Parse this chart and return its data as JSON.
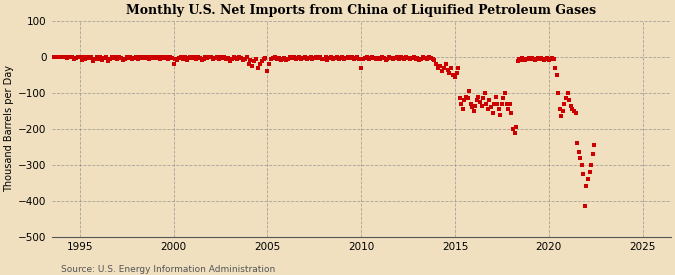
{
  "title": "Monthly U.S. Net Imports from China of Liquified Petroleum Gases",
  "ylabel": "Thousand Barrels per Day",
  "source": "Source: U.S. Energy Information Administration",
  "background_color": "#f0e0c0",
  "plot_bg_color": "#f0e0c0",
  "marker_color": "#cc0000",
  "xlim": [
    1993.5,
    2026.5
  ],
  "ylim": [
    -500,
    100
  ],
  "yticks": [
    100,
    0,
    -100,
    -200,
    -300,
    -400,
    -500
  ],
  "xticks": [
    1995,
    2000,
    2005,
    2010,
    2015,
    2020,
    2025
  ],
  "data": [
    [
      1993.6,
      0
    ],
    [
      1993.7,
      0
    ],
    [
      1993.8,
      0
    ],
    [
      1993.9,
      0
    ],
    [
      1994.0,
      0
    ],
    [
      1994.1,
      0
    ],
    [
      1994.2,
      0
    ],
    [
      1994.3,
      -3
    ],
    [
      1994.4,
      0
    ],
    [
      1994.5,
      0
    ],
    [
      1994.6,
      0
    ],
    [
      1994.7,
      -5
    ],
    [
      1994.8,
      -3
    ],
    [
      1994.9,
      0
    ],
    [
      1995.0,
      0
    ],
    [
      1995.1,
      -8
    ],
    [
      1995.2,
      0
    ],
    [
      1995.3,
      -5
    ],
    [
      1995.4,
      0
    ],
    [
      1995.5,
      -3
    ],
    [
      1995.6,
      0
    ],
    [
      1995.7,
      -10
    ],
    [
      1995.8,
      -5
    ],
    [
      1995.9,
      0
    ],
    [
      1996.0,
      -5
    ],
    [
      1996.1,
      0
    ],
    [
      1996.2,
      -8
    ],
    [
      1996.3,
      -3
    ],
    [
      1996.4,
      0
    ],
    [
      1996.5,
      -12
    ],
    [
      1996.6,
      -5
    ],
    [
      1996.7,
      0
    ],
    [
      1996.8,
      -3
    ],
    [
      1996.9,
      0
    ],
    [
      1997.0,
      -5
    ],
    [
      1997.1,
      0
    ],
    [
      1997.2,
      -3
    ],
    [
      1997.3,
      -8
    ],
    [
      1997.4,
      -5
    ],
    [
      1997.5,
      0
    ],
    [
      1997.6,
      -3
    ],
    [
      1997.7,
      0
    ],
    [
      1997.8,
      -5
    ],
    [
      1997.9,
      -3
    ],
    [
      1998.0,
      0
    ],
    [
      1998.1,
      -5
    ],
    [
      1998.2,
      0
    ],
    [
      1998.3,
      -3
    ],
    [
      1998.4,
      0
    ],
    [
      1998.5,
      -2
    ],
    [
      1998.6,
      0
    ],
    [
      1998.7,
      -5
    ],
    [
      1998.8,
      0
    ],
    [
      1998.9,
      -3
    ],
    [
      1999.0,
      0
    ],
    [
      1999.1,
      -3
    ],
    [
      1999.2,
      0
    ],
    [
      1999.3,
      -5
    ],
    [
      1999.4,
      0
    ],
    [
      1999.5,
      -3
    ],
    [
      1999.6,
      0
    ],
    [
      1999.7,
      -5
    ],
    [
      1999.8,
      0
    ],
    [
      1999.9,
      -3
    ],
    [
      2000.0,
      -18
    ],
    [
      2000.1,
      -5
    ],
    [
      2000.2,
      -8
    ],
    [
      2000.3,
      -3
    ],
    [
      2000.4,
      0
    ],
    [
      2000.5,
      -5
    ],
    [
      2000.6,
      0
    ],
    [
      2000.7,
      -8
    ],
    [
      2000.8,
      -3
    ],
    [
      2000.9,
      0
    ],
    [
      2001.0,
      -3
    ],
    [
      2001.1,
      0
    ],
    [
      2001.2,
      -5
    ],
    [
      2001.3,
      0
    ],
    [
      2001.4,
      -3
    ],
    [
      2001.5,
      -8
    ],
    [
      2001.6,
      -5
    ],
    [
      2001.7,
      0
    ],
    [
      2001.8,
      -3
    ],
    [
      2001.9,
      0
    ],
    [
      2002.0,
      0
    ],
    [
      2002.1,
      -5
    ],
    [
      2002.2,
      -3
    ],
    [
      2002.3,
      0
    ],
    [
      2002.4,
      -5
    ],
    [
      2002.5,
      0
    ],
    [
      2002.6,
      -3
    ],
    [
      2002.7,
      0
    ],
    [
      2002.8,
      -5
    ],
    [
      2002.9,
      -3
    ],
    [
      2003.0,
      -10
    ],
    [
      2003.1,
      -5
    ],
    [
      2003.2,
      0
    ],
    [
      2003.3,
      -3
    ],
    [
      2003.4,
      -5
    ],
    [
      2003.5,
      0
    ],
    [
      2003.6,
      -3
    ],
    [
      2003.7,
      -8
    ],
    [
      2003.8,
      -5
    ],
    [
      2003.9,
      0
    ],
    [
      2004.0,
      -18
    ],
    [
      2004.1,
      -8
    ],
    [
      2004.2,
      -25
    ],
    [
      2004.3,
      -10
    ],
    [
      2004.4,
      -5
    ],
    [
      2004.5,
      -30
    ],
    [
      2004.6,
      -20
    ],
    [
      2004.7,
      -10
    ],
    [
      2004.8,
      -5
    ],
    [
      2004.9,
      -3
    ],
    [
      2005.0,
      -40
    ],
    [
      2005.1,
      -20
    ],
    [
      2005.2,
      -5
    ],
    [
      2005.3,
      -3
    ],
    [
      2005.4,
      0
    ],
    [
      2005.5,
      -5
    ],
    [
      2005.6,
      -3
    ],
    [
      2005.7,
      -8
    ],
    [
      2005.8,
      -5
    ],
    [
      2005.9,
      -3
    ],
    [
      2006.0,
      -8
    ],
    [
      2006.1,
      -5
    ],
    [
      2006.2,
      0
    ],
    [
      2006.3,
      -3
    ],
    [
      2006.4,
      0
    ],
    [
      2006.5,
      -5
    ],
    [
      2006.6,
      -3
    ],
    [
      2006.7,
      0
    ],
    [
      2006.8,
      -5
    ],
    [
      2006.9,
      -3
    ],
    [
      2007.0,
      0
    ],
    [
      2007.1,
      -5
    ],
    [
      2007.2,
      -3
    ],
    [
      2007.3,
      0
    ],
    [
      2007.4,
      -5
    ],
    [
      2007.5,
      -3
    ],
    [
      2007.6,
      0
    ],
    [
      2007.7,
      -3
    ],
    [
      2007.8,
      0
    ],
    [
      2007.9,
      -5
    ],
    [
      2008.0,
      -5
    ],
    [
      2008.1,
      0
    ],
    [
      2008.2,
      -8
    ],
    [
      2008.3,
      -3
    ],
    [
      2008.4,
      0
    ],
    [
      2008.5,
      -5
    ],
    [
      2008.6,
      -3
    ],
    [
      2008.7,
      0
    ],
    [
      2008.8,
      -5
    ],
    [
      2008.9,
      -3
    ],
    [
      2009.0,
      0
    ],
    [
      2009.1,
      -5
    ],
    [
      2009.2,
      -3
    ],
    [
      2009.3,
      0
    ],
    [
      2009.4,
      -3
    ],
    [
      2009.5,
      0
    ],
    [
      2009.6,
      -5
    ],
    [
      2009.7,
      -3
    ],
    [
      2009.8,
      0
    ],
    [
      2009.9,
      -5
    ],
    [
      2010.0,
      -30
    ],
    [
      2010.1,
      -5
    ],
    [
      2010.2,
      -3
    ],
    [
      2010.3,
      0
    ],
    [
      2010.4,
      -5
    ],
    [
      2010.5,
      -3
    ],
    [
      2010.6,
      0
    ],
    [
      2010.7,
      -3
    ],
    [
      2010.8,
      -5
    ],
    [
      2010.9,
      -3
    ],
    [
      2011.0,
      -5
    ],
    [
      2011.1,
      0
    ],
    [
      2011.2,
      -3
    ],
    [
      2011.3,
      -8
    ],
    [
      2011.4,
      -5
    ],
    [
      2011.5,
      0
    ],
    [
      2011.6,
      -3
    ],
    [
      2011.7,
      -5
    ],
    [
      2011.8,
      -3
    ],
    [
      2011.9,
      0
    ],
    [
      2012.0,
      -5
    ],
    [
      2012.1,
      0
    ],
    [
      2012.2,
      -3
    ],
    [
      2012.3,
      -5
    ],
    [
      2012.4,
      0
    ],
    [
      2012.5,
      -3
    ],
    [
      2012.6,
      -5
    ],
    [
      2012.7,
      -3
    ],
    [
      2012.8,
      0
    ],
    [
      2012.9,
      -5
    ],
    [
      2013.0,
      -3
    ],
    [
      2013.1,
      -8
    ],
    [
      2013.2,
      -5
    ],
    [
      2013.3,
      0
    ],
    [
      2013.4,
      -3
    ],
    [
      2013.5,
      -5
    ],
    [
      2013.6,
      0
    ],
    [
      2013.7,
      -3
    ],
    [
      2013.8,
      -5
    ],
    [
      2013.9,
      -8
    ],
    [
      2014.0,
      -20
    ],
    [
      2014.1,
      -30
    ],
    [
      2014.2,
      -25
    ],
    [
      2014.3,
      -40
    ],
    [
      2014.4,
      -30
    ],
    [
      2014.5,
      -20
    ],
    [
      2014.6,
      -35
    ],
    [
      2014.7,
      -45
    ],
    [
      2014.8,
      -30
    ],
    [
      2014.9,
      -50
    ],
    [
      2015.0,
      -55
    ],
    [
      2015.08,
      -45
    ],
    [
      2015.17,
      -30
    ],
    [
      2015.25,
      -115
    ],
    [
      2015.33,
      -130
    ],
    [
      2015.42,
      -145
    ],
    [
      2015.5,
      -120
    ],
    [
      2015.58,
      -110
    ],
    [
      2015.67,
      -115
    ],
    [
      2015.75,
      -95
    ],
    [
      2015.83,
      -130
    ],
    [
      2015.92,
      -140
    ],
    [
      2016.0,
      -150
    ],
    [
      2016.08,
      -135
    ],
    [
      2016.17,
      -120
    ],
    [
      2016.25,
      -110
    ],
    [
      2016.33,
      -125
    ],
    [
      2016.42,
      -135
    ],
    [
      2016.5,
      -115
    ],
    [
      2016.58,
      -100
    ],
    [
      2016.67,
      -130
    ],
    [
      2016.75,
      -145
    ],
    [
      2016.83,
      -120
    ],
    [
      2016.92,
      -140
    ],
    [
      2017.0,
      -155
    ],
    [
      2017.08,
      -130
    ],
    [
      2017.17,
      -110
    ],
    [
      2017.25,
      -130
    ],
    [
      2017.33,
      -145
    ],
    [
      2017.42,
      -160
    ],
    [
      2017.5,
      -130
    ],
    [
      2017.58,
      -115
    ],
    [
      2017.67,
      -100
    ],
    [
      2017.75,
      -130
    ],
    [
      2017.83,
      -145
    ],
    [
      2017.92,
      -130
    ],
    [
      2018.0,
      -155
    ],
    [
      2018.08,
      -200
    ],
    [
      2018.17,
      -210
    ],
    [
      2018.25,
      -195
    ],
    [
      2018.33,
      -10
    ],
    [
      2018.42,
      -5
    ],
    [
      2018.5,
      -8
    ],
    [
      2018.58,
      -3
    ],
    [
      2018.67,
      -5
    ],
    [
      2018.75,
      -8
    ],
    [
      2018.83,
      -5
    ],
    [
      2018.92,
      -3
    ],
    [
      2019.0,
      -5
    ],
    [
      2019.08,
      -3
    ],
    [
      2019.17,
      -5
    ],
    [
      2019.25,
      -8
    ],
    [
      2019.33,
      -5
    ],
    [
      2019.42,
      -3
    ],
    [
      2019.5,
      -5
    ],
    [
      2019.58,
      -3
    ],
    [
      2019.67,
      -5
    ],
    [
      2019.75,
      -8
    ],
    [
      2019.83,
      -5
    ],
    [
      2019.92,
      -3
    ],
    [
      2020.0,
      -8
    ],
    [
      2020.08,
      -5
    ],
    [
      2020.17,
      -3
    ],
    [
      2020.25,
      -5
    ],
    [
      2020.33,
      -30
    ],
    [
      2020.42,
      -50
    ],
    [
      2020.5,
      -100
    ],
    [
      2020.58,
      -145
    ],
    [
      2020.67,
      -165
    ],
    [
      2020.75,
      -150
    ],
    [
      2020.83,
      -130
    ],
    [
      2020.92,
      -115
    ],
    [
      2021.0,
      -100
    ],
    [
      2021.08,
      -120
    ],
    [
      2021.17,
      -135
    ],
    [
      2021.25,
      -145
    ],
    [
      2021.33,
      -150
    ],
    [
      2021.42,
      -155
    ],
    [
      2021.5,
      -240
    ],
    [
      2021.58,
      -265
    ],
    [
      2021.67,
      -280
    ],
    [
      2021.75,
      -300
    ],
    [
      2021.83,
      -325
    ],
    [
      2021.92,
      -415
    ],
    [
      2022.0,
      -360
    ],
    [
      2022.08,
      -340
    ],
    [
      2022.17,
      -320
    ],
    [
      2022.25,
      -300
    ],
    [
      2022.33,
      -270
    ],
    [
      2022.42,
      -245
    ]
  ]
}
